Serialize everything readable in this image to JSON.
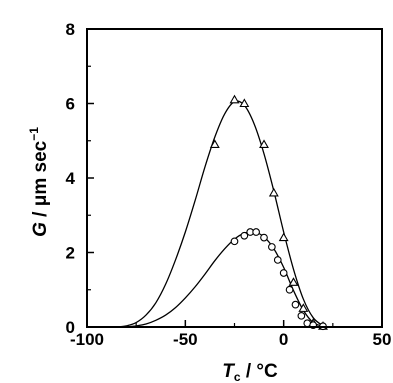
{
  "chart_data": {
    "type": "scatter",
    "title": "",
    "xlabel": {
      "symbol": "T",
      "subscript": "c",
      "unit": " / °C"
    },
    "ylabel": {
      "symbol": "G",
      "unit": " / μm sec",
      "superscript": "−1"
    },
    "xlim": [
      -100,
      50
    ],
    "ylim": [
      0,
      8
    ],
    "x_ticks": [
      -100,
      -50,
      0,
      50
    ],
    "x_tick_labels": [
      "-100",
      "-50",
      "0",
      "50"
    ],
    "y_ticks": [
      0,
      2,
      4,
      6,
      8
    ],
    "y_tick_labels": [
      "0",
      "2",
      "4",
      "6",
      "8"
    ],
    "grid": false,
    "legend": "none",
    "series": [
      {
        "marker": "triangle",
        "points": [
          {
            "x": -35,
            "y": 4.9
          },
          {
            "x": -25,
            "y": 6.1
          },
          {
            "x": -20,
            "y": 6.0
          },
          {
            "x": -10,
            "y": 4.9
          },
          {
            "x": -5,
            "y": 3.6
          },
          {
            "x": 0,
            "y": 2.4
          },
          {
            "x": 5,
            "y": 1.2
          },
          {
            "x": 10,
            "y": 0.5
          },
          {
            "x": 15,
            "y": 0.1
          },
          {
            "x": 20,
            "y": 0.02
          }
        ],
        "fit": [
          {
            "x": -85,
            "y": 0.0
          },
          {
            "x": -80,
            "y": 0.03
          },
          {
            "x": -75,
            "y": 0.12
          },
          {
            "x": -70,
            "y": 0.32
          },
          {
            "x": -65,
            "y": 0.65
          },
          {
            "x": -60,
            "y": 1.15
          },
          {
            "x": -55,
            "y": 1.8
          },
          {
            "x": -50,
            "y": 2.55
          },
          {
            "x": -45,
            "y": 3.4
          },
          {
            "x": -40,
            "y": 4.3
          },
          {
            "x": -35,
            "y": 5.1
          },
          {
            "x": -30,
            "y": 5.72
          },
          {
            "x": -25,
            "y": 6.05
          },
          {
            "x": -20,
            "y": 5.95
          },
          {
            "x": -15,
            "y": 5.45
          },
          {
            "x": -10,
            "y": 4.65
          },
          {
            "x": -5,
            "y": 3.65
          },
          {
            "x": 0,
            "y": 2.55
          },
          {
            "x": 5,
            "y": 1.55
          },
          {
            "x": 10,
            "y": 0.75
          },
          {
            "x": 15,
            "y": 0.25
          },
          {
            "x": 20,
            "y": 0.03
          }
        ]
      },
      {
        "marker": "circle",
        "points": [
          {
            "x": -25,
            "y": 2.3
          },
          {
            "x": -20,
            "y": 2.45
          },
          {
            "x": -17,
            "y": 2.55
          },
          {
            "x": -14,
            "y": 2.55
          },
          {
            "x": -10,
            "y": 2.4
          },
          {
            "x": -6,
            "y": 2.15
          },
          {
            "x": -3,
            "y": 1.8
          },
          {
            "x": 0,
            "y": 1.45
          },
          {
            "x": 3,
            "y": 1.0
          },
          {
            "x": 6,
            "y": 0.6
          },
          {
            "x": 9,
            "y": 0.3
          },
          {
            "x": 12,
            "y": 0.1
          },
          {
            "x": 15,
            "y": 0.05
          },
          {
            "x": 20,
            "y": 0.02
          }
        ],
        "fit": [
          {
            "x": -80,
            "y": 0.0
          },
          {
            "x": -75,
            "y": 0.03
          },
          {
            "x": -70,
            "y": 0.08
          },
          {
            "x": -65,
            "y": 0.18
          },
          {
            "x": -60,
            "y": 0.32
          },
          {
            "x": -55,
            "y": 0.52
          },
          {
            "x": -50,
            "y": 0.78
          },
          {
            "x": -45,
            "y": 1.08
          },
          {
            "x": -40,
            "y": 1.42
          },
          {
            "x": -35,
            "y": 1.78
          },
          {
            "x": -30,
            "y": 2.1
          },
          {
            "x": -25,
            "y": 2.36
          },
          {
            "x": -20,
            "y": 2.52
          },
          {
            "x": -15,
            "y": 2.55
          },
          {
            "x": -10,
            "y": 2.42
          },
          {
            "x": -5,
            "y": 2.1
          },
          {
            "x": 0,
            "y": 1.6
          },
          {
            "x": 5,
            "y": 0.98
          },
          {
            "x": 10,
            "y": 0.45
          },
          {
            "x": 15,
            "y": 0.12
          },
          {
            "x": 20,
            "y": 0.02
          }
        ]
      }
    ]
  }
}
